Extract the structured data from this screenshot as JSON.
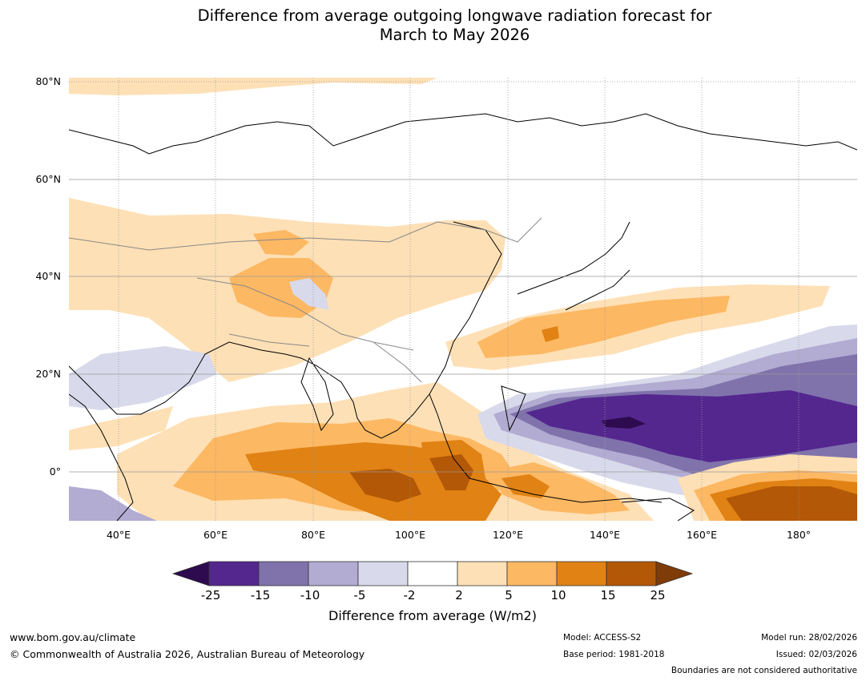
{
  "title_line1": "Difference from average outgoing longwave radiation forecast for",
  "title_line2": "March to May 2026",
  "lat_labels": [
    "80°N",
    "60°N",
    "40°N",
    "20°N",
    "0°"
  ],
  "lon_labels": [
    "40°E",
    "60°E",
    "80°E",
    "100°E",
    "120°E",
    "140°E",
    "160°E",
    "180°"
  ],
  "colorbar": {
    "ticks": [
      "-25",
      "-15",
      "-10",
      "-5",
      "-2",
      "2",
      "5",
      "10",
      "15",
      "25"
    ],
    "label": "Difference from average (W/m2)",
    "colors": {
      "lt_-25": "#2d0b4e",
      "-25_-15": "#54278f",
      "-15_-10": "#8073ac",
      "-10_-5": "#b2abd2",
      "-5_-2": "#d8daeb",
      "-2_2": "#ffffff",
      "2_5": "#fee0b6",
      "5_10": "#fdb863",
      "10_15": "#e08214",
      "15_25": "#b35806",
      "gt_25": "#7f3b08"
    }
  },
  "footer": {
    "website": "www.bom.gov.au/climate",
    "copyright": "© Commonwealth of Australia 2026, Australian Bureau of Meteorology",
    "model": "Model: ACCESS-S2",
    "base_period": "Base period: 1981-2018",
    "model_run": "Model run: 28/02/2026",
    "issued": "Issued: 02/03/2026",
    "disclaimer": "Boundaries are not considered authoritative"
  }
}
